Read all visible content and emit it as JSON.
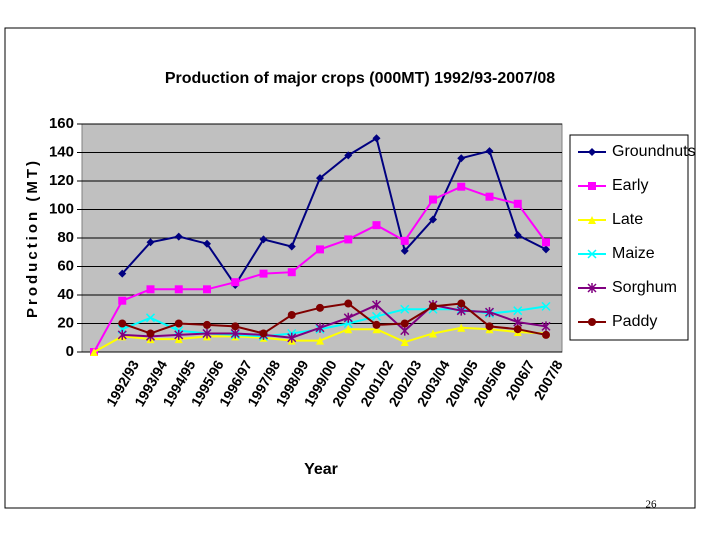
{
  "chart_data": {
    "type": "line",
    "title": "Production of major crops (000MT) 1992/93-2007/08",
    "x_label": "Year",
    "y_label": "Production (MT)",
    "categories": [
      null,
      "1992/93",
      "1993/94",
      "1994/95",
      "1995/96",
      "1996/97",
      "1997/98",
      "1998/99",
      "1999/00",
      "2000/01",
      "2001/02",
      "2002/03",
      "2003/04",
      "2004/05",
      "2005/06",
      "2006/7",
      "2007/8"
    ],
    "series": [
      {
        "name": "Groundnuts",
        "color": "#000080",
        "marker": "diamond",
        "values": [
          null,
          55,
          77,
          81,
          76,
          47,
          79,
          74,
          122,
          138,
          150,
          71,
          93,
          136,
          141,
          82,
          72
        ]
      },
      {
        "name": "Early",
        "color": "#ff00ff",
        "marker": "square",
        "values": [
          0,
          36,
          44,
          44,
          44,
          49,
          55,
          56,
          72,
          79,
          89,
          78,
          107,
          116,
          109,
          104,
          77
        ]
      },
      {
        "name": "Late",
        "color": "#ffff00",
        "marker": "triangle",
        "values": [
          0,
          11,
          9,
          9,
          11,
          11,
          10,
          8,
          8,
          16,
          16,
          7,
          13,
          17,
          16,
          14,
          13
        ]
      },
      {
        "name": "Maize",
        "color": "#00ffff",
        "marker": "x",
        "values": [
          null,
          16,
          24,
          15,
          13,
          12,
          11,
          13,
          16,
          20,
          25,
          30,
          30,
          30,
          27,
          29,
          32
        ]
      },
      {
        "name": "Sorghum",
        "color": "#800080",
        "marker": "star",
        "values": [
          null,
          12,
          11,
          12,
          13,
          13,
          12,
          10,
          17,
          24,
          33,
          15,
          33,
          29,
          28,
          21,
          18
        ]
      },
      {
        "name": "Paddy",
        "color": "#800000",
        "marker": "circle",
        "values": [
          null,
          20,
          13,
          20,
          19,
          18,
          13,
          26,
          31,
          34,
          19,
          20,
          32,
          34,
          18,
          16,
          12
        ]
      }
    ],
    "ylim": [
      0,
      160
    ],
    "yticks": [
      0,
      20,
      40,
      60,
      80,
      100,
      120,
      140,
      160
    ],
    "grid": true,
    "legend": "right",
    "plot_background": "#c0c0c0"
  },
  "slide_number": "26"
}
